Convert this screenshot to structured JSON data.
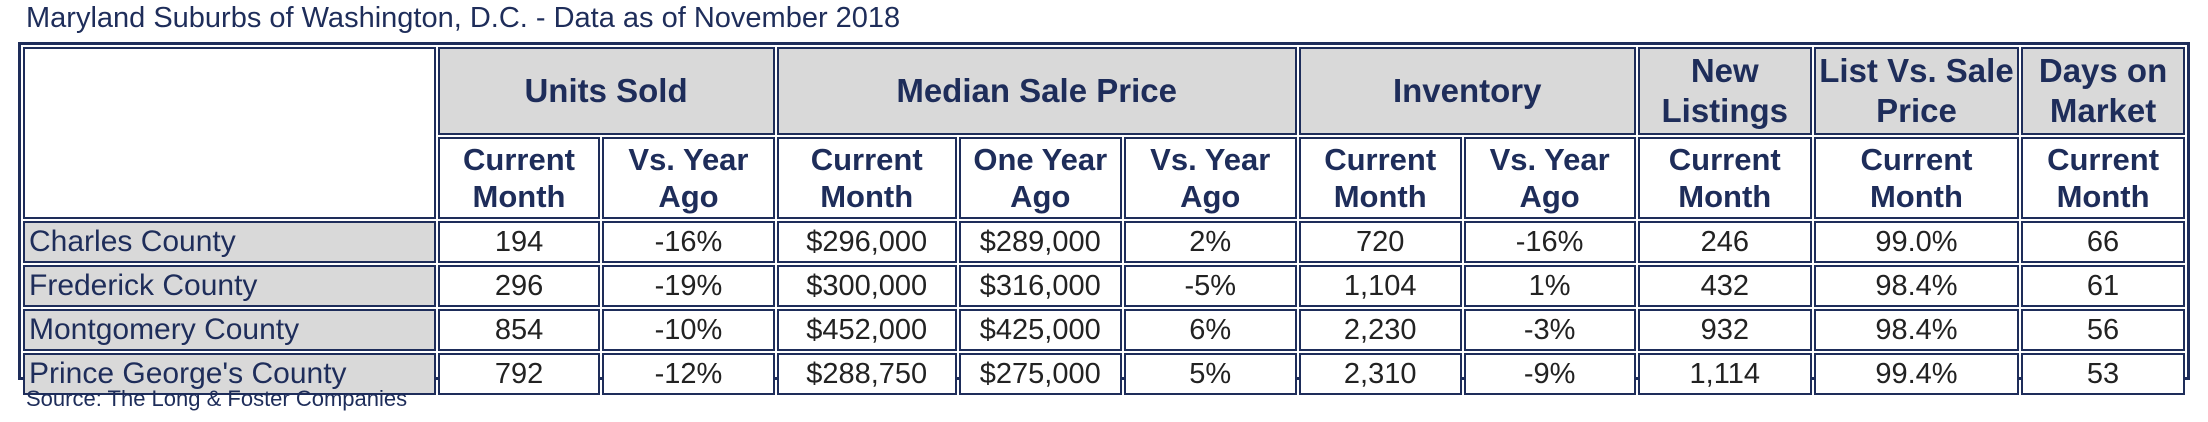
{
  "title": "Maryland Suburbs of Washington, D.C. - Data as of November 2018",
  "groups": {
    "units_sold": "Units Sold",
    "median_sale_price": "Median Sale Price",
    "inventory": "Inventory",
    "new_listings": "New Listings",
    "list_vs_sale_price": "List Vs. Sale Price",
    "days_on_market": "Days on Market"
  },
  "subheaders": {
    "current_month": "Current Month",
    "vs_year_ago": "Vs. Year Ago",
    "one_year_ago": "One Year Ago"
  },
  "rows": [
    {
      "county": "Charles County",
      "units_current": "194",
      "units_vs": "-16%",
      "price_current": "$296,000",
      "price_year_ago": "$289,000",
      "price_vs": "2%",
      "inv_current": "720",
      "inv_vs": "-16%",
      "new_listings": "246",
      "list_vs_sale": "99.0%",
      "dom": "66"
    },
    {
      "county": "Frederick County",
      "units_current": "296",
      "units_vs": "-19%",
      "price_current": "$300,000",
      "price_year_ago": "$316,000",
      "price_vs": "-5%",
      "inv_current": "1,104",
      "inv_vs": "1%",
      "new_listings": "432",
      "list_vs_sale": "98.4%",
      "dom": "61"
    },
    {
      "county": "Montgomery County",
      "units_current": "854",
      "units_vs": "-10%",
      "price_current": "$452,000",
      "price_year_ago": "$425,000",
      "price_vs": "6%",
      "inv_current": "2,230",
      "inv_vs": "-3%",
      "new_listings": "932",
      "list_vs_sale": "98.4%",
      "dom": "56"
    },
    {
      "county": "Prince George's County",
      "units_current": "792",
      "units_vs": "-12%",
      "price_current": "$288,750",
      "price_year_ago": "$275,000",
      "price_vs": "5%",
      "inv_current": "2,310",
      "inv_vs": "-9%",
      "new_listings": "1,114",
      "list_vs_sale": "99.4%",
      "dom": "53"
    }
  ],
  "source": "Source: The Long & Foster Companies",
  "colors": {
    "navy": "#1e2d5a",
    "header_gray": "#d9d9d9"
  }
}
